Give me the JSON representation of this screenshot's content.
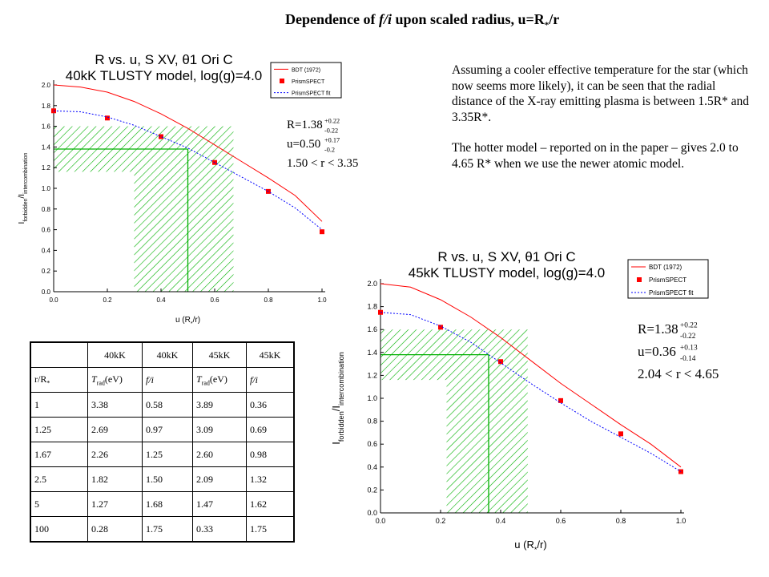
{
  "slide": {
    "title_prefix": "Dependence of ",
    "title_italic": "f/i",
    "title_middle": " upon scaled radius, u=R",
    "title_sub": "*",
    "title_suffix": "/r",
    "para1": "Assuming a cooler effective temperature for the star (which now seems more likely), it can be seen that the radial distance of the X-ray emitting plasma is between 1.5R* and 3.35R*.",
    "para2": "The hotter model – reported on in the paper – gives 2.0 to 4.65 R* when we use the newer atomic model."
  },
  "table": {
    "header1": [
      "",
      "40kK",
      "40kK",
      "45kK",
      "45kK"
    ],
    "header2": [
      "r/R*",
      "T_rad(eV)",
      "f/i",
      "T_rad(eV)",
      "f/i"
    ],
    "rows": [
      [
        "1",
        "3.38",
        "0.58",
        "3.89",
        "0.36"
      ],
      [
        "1.25",
        "2.69",
        "0.97",
        "3.09",
        "0.69"
      ],
      [
        "1.67",
        "2.26",
        "1.25",
        "2.60",
        "0.98"
      ],
      [
        "2.5",
        "1.82",
        "1.50",
        "2.09",
        "1.32"
      ],
      [
        "5",
        "1.27",
        "1.68",
        "1.47",
        "1.62"
      ],
      [
        "100",
        "0.28",
        "1.75",
        "0.33",
        "1.75"
      ]
    ]
  },
  "colors": {
    "bdt_line": "#ff0000",
    "prism_points": "#ff0000",
    "fit_line": "#0000ff",
    "hatch": "#00b000",
    "guide_lines": "#00b000"
  },
  "chart_data": [
    {
      "type": "line",
      "title_line1": "R vs. u, S XV, θ1 Ori C",
      "title_line2": "40kK TLUSTY model, log(g)=4.0",
      "xlabel": "u (R*/r)",
      "ylabel": "I_forbidden/I_intercombination",
      "xlim": [
        0.0,
        1.0
      ],
      "ylim": [
        0.0,
        2.0
      ],
      "xticks": [
        "0.0",
        "0.2",
        "0.4",
        "0.6",
        "0.8",
        "1.0"
      ],
      "yticks": [
        "0.0",
        "0.2",
        "0.4",
        "0.6",
        "0.8",
        "1.0",
        "1.2",
        "1.4",
        "1.6",
        "1.8",
        "2.0"
      ],
      "legend_position": "top-right",
      "series": [
        {
          "name": "BDT (1972)",
          "style": "solid",
          "x": [
            0.0,
            0.1,
            0.2,
            0.3,
            0.4,
            0.5,
            0.6,
            0.7,
            0.8,
            0.9,
            1.0
          ],
          "y": [
            2.0,
            1.98,
            1.93,
            1.84,
            1.72,
            1.58,
            1.42,
            1.26,
            1.1,
            0.93,
            0.68
          ]
        },
        {
          "name": "PrismSPECT",
          "style": "markers",
          "x": [
            0.0,
            0.2,
            0.4,
            0.6,
            0.8,
            1.0
          ],
          "y": [
            1.75,
            1.68,
            1.5,
            1.25,
            0.97,
            0.58
          ]
        },
        {
          "name": "PrismSPECT fit",
          "style": "dotted",
          "x": [
            0.0,
            0.1,
            0.2,
            0.3,
            0.4,
            0.5,
            0.6,
            0.7,
            0.8,
            0.9,
            1.0
          ],
          "y": [
            1.75,
            1.74,
            1.69,
            1.61,
            1.5,
            1.39,
            1.25,
            1.11,
            0.97,
            0.81,
            0.6
          ]
        }
      ],
      "annotations": {
        "R_value": "R=1.38",
        "R_plus": "+0.22",
        "R_minus": "-0.22",
        "u_value": "u=0.50",
        "u_plus": "+0.17",
        "u_minus": "-0.2",
        "range": "1.50 < r < 3.35"
      },
      "measurement": {
        "R": 1.38,
        "R_low": 1.16,
        "R_high": 1.6,
        "u": 0.5,
        "u_low": 0.3,
        "u_high": 0.67
      }
    },
    {
      "type": "line",
      "title_line1": "R vs. u, S XV, θ1 Ori C",
      "title_line2": "45kK TLUSTY model, log(g)=4.0",
      "xlabel": "u (R*/r)",
      "ylabel": "I_forbidden/I_intercombination",
      "xlim": [
        0.0,
        1.0
      ],
      "ylim": [
        0.0,
        2.0
      ],
      "xticks": [
        "0.0",
        "0.2",
        "0.4",
        "0.6",
        "0.8",
        "1.0"
      ],
      "yticks": [
        "0.0",
        "0.2",
        "0.4",
        "0.6",
        "0.8",
        "1.0",
        "1.2",
        "1.4",
        "1.6",
        "1.8",
        "2.0"
      ],
      "legend_position": "top-right",
      "series": [
        {
          "name": "BDT (1972)",
          "style": "solid",
          "x": [
            0.0,
            0.1,
            0.2,
            0.3,
            0.4,
            0.5,
            0.6,
            0.7,
            0.8,
            0.9,
            1.0
          ],
          "y": [
            2.0,
            1.97,
            1.86,
            1.71,
            1.53,
            1.33,
            1.13,
            0.95,
            0.77,
            0.6,
            0.4
          ]
        },
        {
          "name": "PrismSPECT",
          "style": "markers",
          "x": [
            0.0,
            0.2,
            0.4,
            0.6,
            0.8,
            1.0
          ],
          "y": [
            1.75,
            1.62,
            1.32,
            0.98,
            0.69,
            0.36
          ]
        },
        {
          "name": "PrismSPECT fit",
          "style": "dotted",
          "x": [
            0.0,
            0.1,
            0.2,
            0.3,
            0.4,
            0.5,
            0.6,
            0.7,
            0.8,
            0.9,
            1.0
          ],
          "y": [
            1.75,
            1.73,
            1.63,
            1.49,
            1.31,
            1.13,
            0.96,
            0.8,
            0.66,
            0.52,
            0.36
          ]
        }
      ],
      "annotations": {
        "R_value": "R=1.38",
        "R_plus": "+0.22",
        "R_minus": "-0.22",
        "u_value": "u=0.36",
        "u_plus": "+0.13",
        "u_minus": "-0.14",
        "range": "2.04 < r < 4.65"
      },
      "measurement": {
        "R": 1.38,
        "R_low": 1.16,
        "R_high": 1.6,
        "u": 0.36,
        "u_low": 0.22,
        "u_high": 0.49
      }
    }
  ]
}
